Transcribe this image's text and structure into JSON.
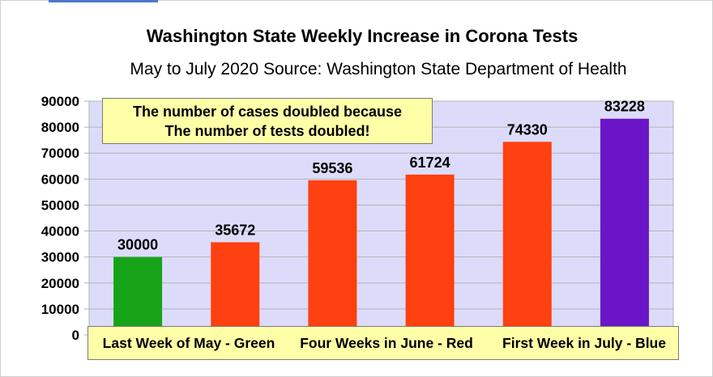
{
  "chart_data": {
    "type": "bar",
    "title": "Washington State Weekly Increase in Corona Tests",
    "subtitle": "May to July 2020 Source: Washington State Department of Health",
    "categories": [
      "",
      "",
      "",
      "",
      "",
      ""
    ],
    "values": [
      30000,
      35672,
      59536,
      61724,
      74330,
      83228
    ],
    "data_labels": [
      "30000",
      "35672",
      "59536",
      "61724",
      "74330",
      "83228"
    ],
    "bar_colors": [
      "#17a317",
      "#ff4010",
      "#ff4010",
      "#ff4010",
      "#ff4010",
      "#6a16c8"
    ],
    "ylim": [
      0,
      90000
    ],
    "yticks": [
      "0",
      "10000",
      "20000",
      "30000",
      "40000",
      "50000",
      "60000",
      "70000",
      "80000",
      "90000"
    ],
    "xlabel": "",
    "ylabel": "",
    "grid": true,
    "group_labels": [
      "Last Week of May - Green",
      "Four Weeks in June - Red",
      "First Week in July - Blue"
    ],
    "annotation": [
      "The number of cases doubled because",
      "The number of tests doubled!"
    ],
    "plot_background": "#dcdcfa"
  }
}
